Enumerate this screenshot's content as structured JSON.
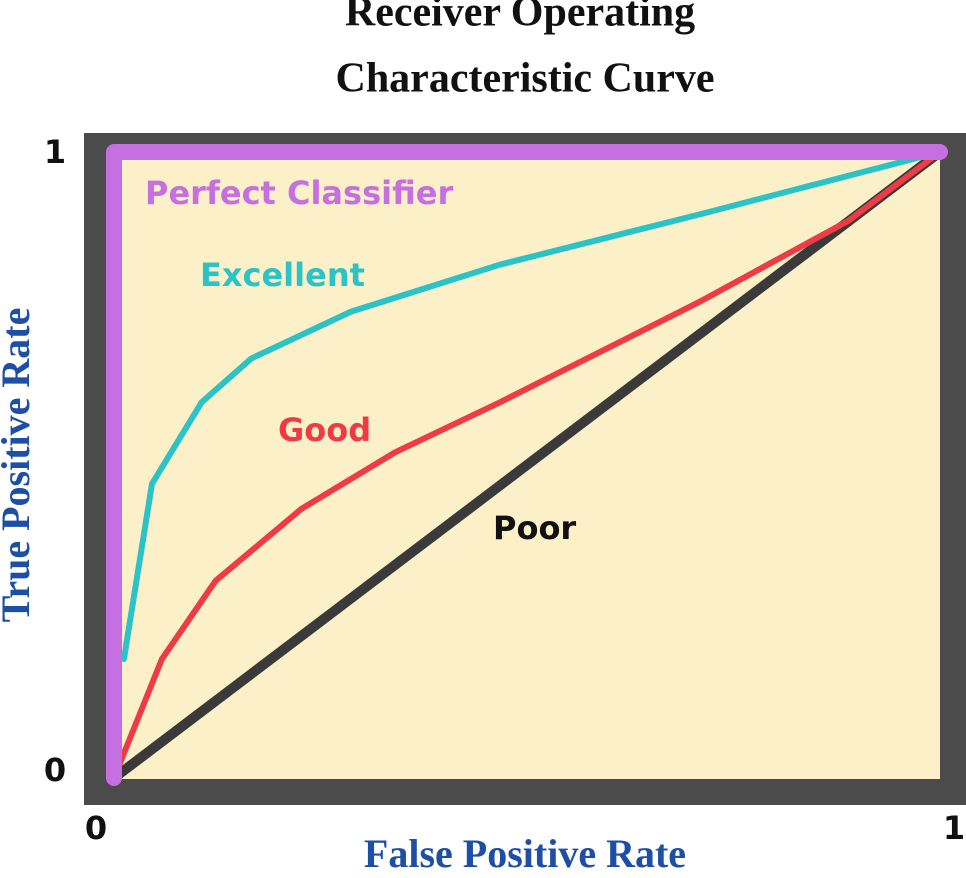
{
  "chart_data": {
    "type": "line",
    "title": [
      "Receiver Operating",
      "Characteristic Curve"
    ],
    "x_label": "False Positive Rate",
    "y_label": "True Positive Rate",
    "xlim": [
      0,
      1
    ],
    "ylim": [
      0,
      1
    ],
    "xticks": [
      0,
      1
    ],
    "yticks": [
      0,
      1
    ],
    "series": [
      {
        "name": "Perfect Classifier",
        "color": "#c56fe0",
        "x": [
          0,
          0,
          1
        ],
        "values": [
          0,
          1,
          1
        ]
      },
      {
        "name": "Excellent",
        "color": "#2cc3c6",
        "x": [
          0.012,
          0.046,
          0.106,
          0.166,
          0.287,
          0.467,
          0.708,
          1
        ],
        "values": [
          0.19,
          0.47,
          0.6,
          0.67,
          0.745,
          0.82,
          0.9,
          1
        ]
      },
      {
        "name": "Good",
        "color": "#ee3b45",
        "x": [
          0,
          0.058,
          0.123,
          0.227,
          0.34,
          0.467,
          0.708,
          0.889,
          1
        ],
        "values": [
          0,
          0.19,
          0.315,
          0.43,
          0.52,
          0.6,
          0.76,
          0.89,
          1
        ]
      },
      {
        "name": "Poor",
        "color": "#3a3a3a",
        "x": [
          0,
          1
        ],
        "values": [
          0,
          1
        ]
      }
    ]
  }
}
